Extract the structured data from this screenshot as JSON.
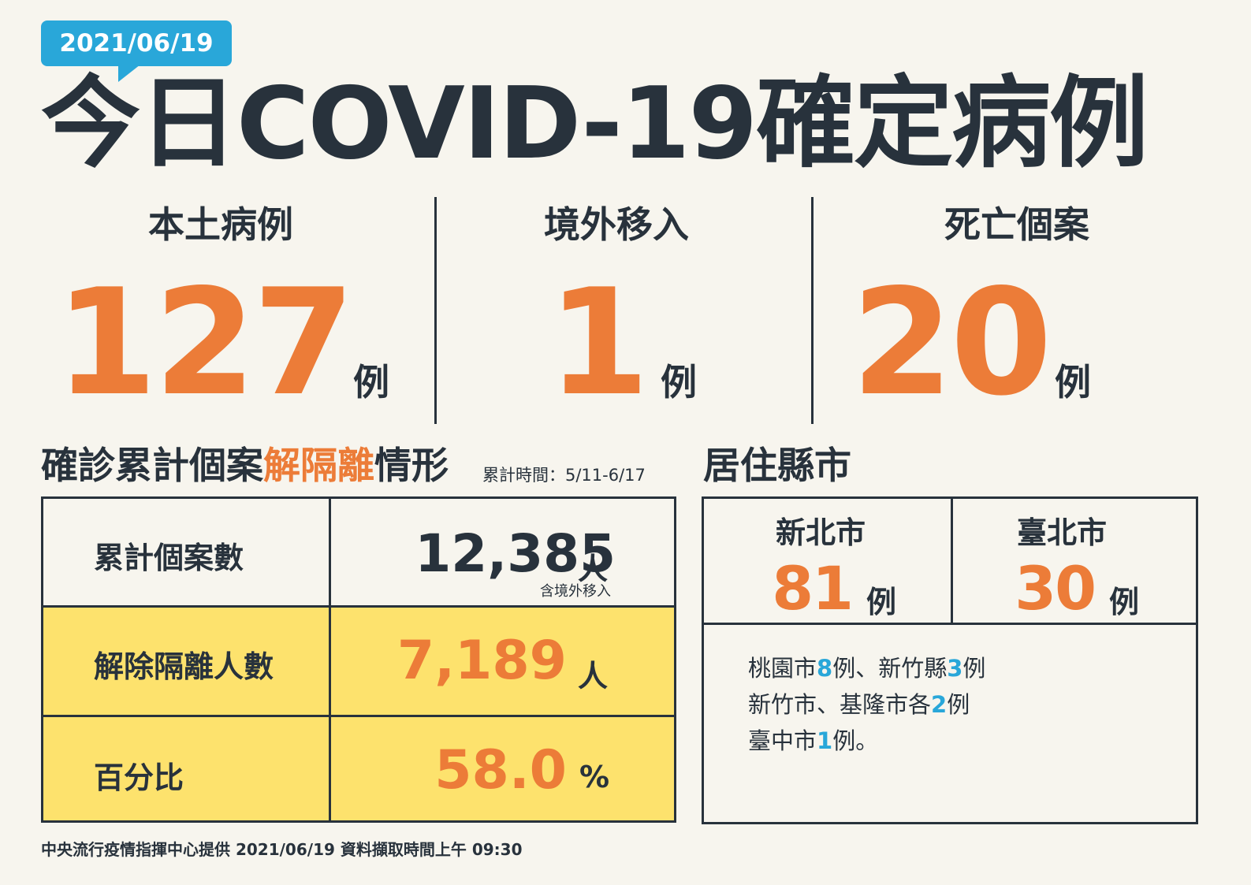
{
  "header": {
    "date": "2021/06/19",
    "title": "今日COVID-19確定病例"
  },
  "stats": [
    {
      "label": "本土病例",
      "value": "127",
      "unit": "例"
    },
    {
      "label": "境外移入",
      "value": "1",
      "unit": "例"
    },
    {
      "label": "死亡個案",
      "value": "20",
      "unit": "例"
    }
  ],
  "isolation": {
    "title_pre": "確診累計個案",
    "title_highlight": "解隔離",
    "title_post": "情形",
    "note": "累計時間：5/11-6/17",
    "rows": [
      {
        "label": "累計個案數",
        "value": "12,385",
        "unit": "人",
        "sub": "含境外移入"
      },
      {
        "label": "解除隔離人數",
        "value": "7,189",
        "unit": "人"
      },
      {
        "label": "百分比",
        "value": "58.0",
        "unit": "%"
      }
    ]
  },
  "residence": {
    "title": "居住縣市",
    "cities": [
      {
        "name": "新北市",
        "value": "81",
        "unit": "例"
      },
      {
        "name": "臺北市",
        "value": "30",
        "unit": "例"
      }
    ],
    "lines": [
      [
        {
          "t": "桃園市"
        },
        {
          "n": "8"
        },
        {
          "t": "例、新竹縣"
        },
        {
          "n": "3"
        },
        {
          "t": "例"
        }
      ],
      [
        {
          "t": "新竹市、基隆市各"
        },
        {
          "n": "2"
        },
        {
          "t": "例"
        }
      ],
      [
        {
          "t": "臺中市"
        },
        {
          "n": "1"
        },
        {
          "t": "例。"
        }
      ]
    ]
  },
  "footer": "中央流行疫情指揮中心提供 2021/06/19 資料擷取時間上午 09:30",
  "colors": {
    "accent": "#ec7c38",
    "badge": "#29a7d9",
    "highlight_row": "#fde26d",
    "text": "#28323c"
  }
}
